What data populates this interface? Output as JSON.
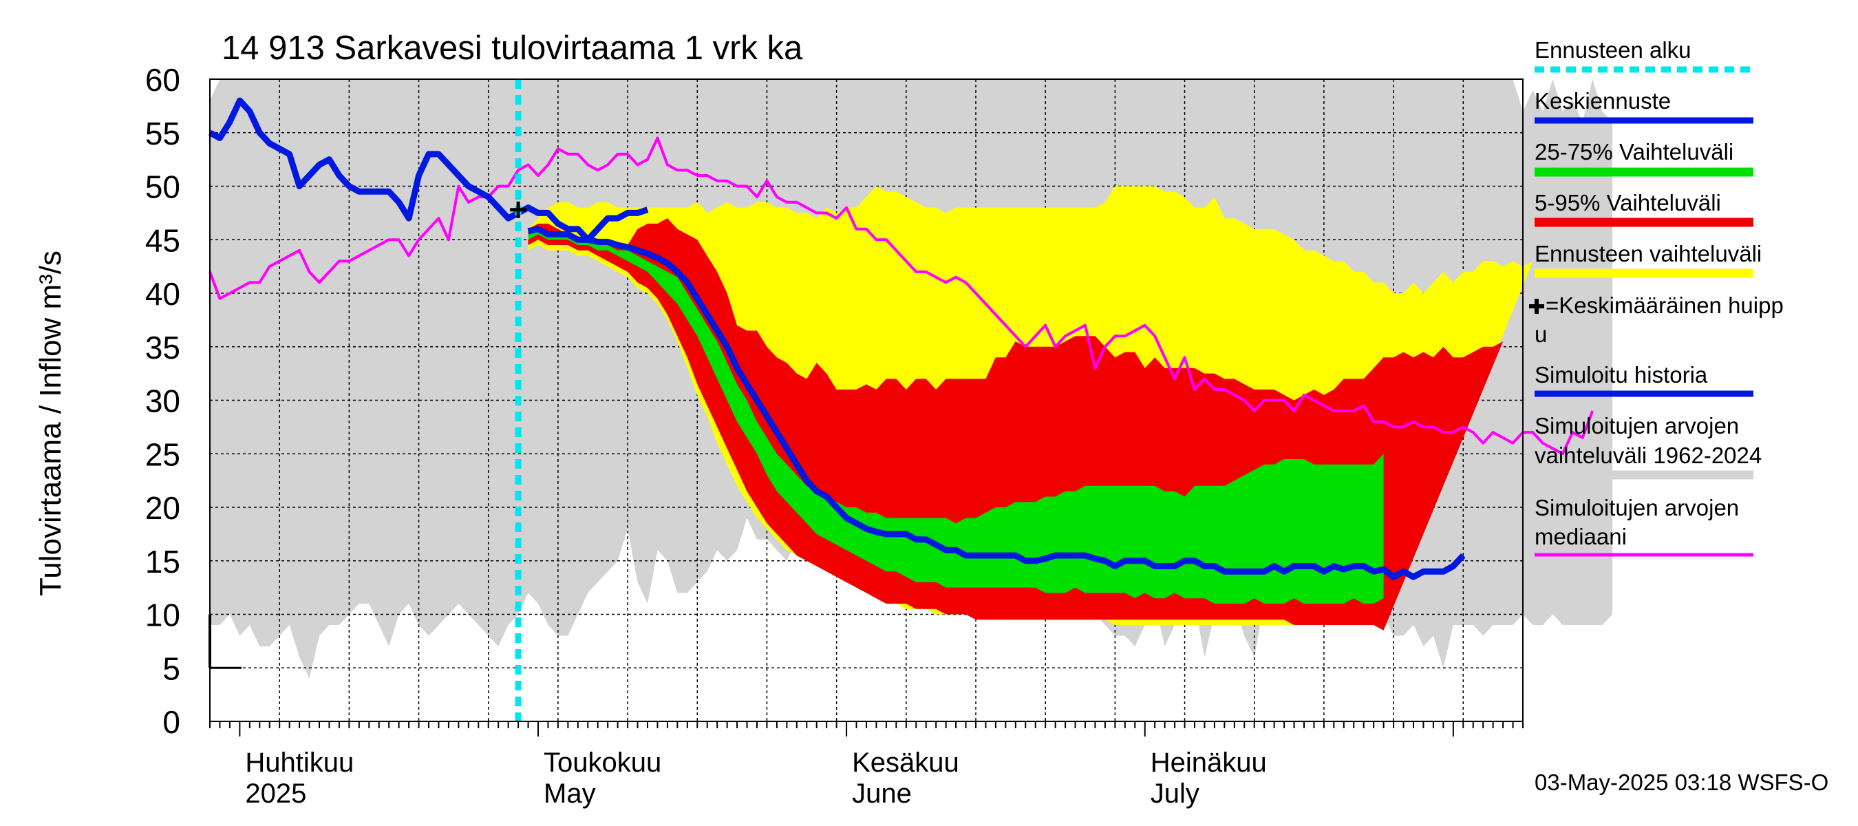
{
  "chart_data": {
    "type": "area",
    "title": "14 913 Sarkavesi tulovirtaama 1 vrk ka",
    "ylabel": "Tulovirtaama / Inflow    m³/s",
    "ylim": [
      0,
      60
    ],
    "yticks": [
      0,
      5,
      10,
      15,
      20,
      25,
      30,
      35,
      40,
      45,
      50,
      55,
      60
    ],
    "xlim": [
      "2025-03-29",
      "2025-08-08"
    ],
    "month_labels": [
      {
        "fi": "Huhtikuu",
        "en": "2025",
        "date": "2025-04-01"
      },
      {
        "fi": "Toukokuu",
        "en": "May",
        "date": "2025-05-01"
      },
      {
        "fi": "Kesäkuu",
        "en": "June",
        "date": "2025-06-01"
      },
      {
        "fi": "Heinäkuu",
        "en": "July",
        "date": "2025-07-01"
      }
    ],
    "forecast_start": "2025-04-29",
    "mean_peak": {
      "date": "2025-04-29",
      "value": 47.8
    },
    "sim_start_date": "2025-03-29",
    "fc_start_date": "2025-04-30",
    "hist_range_upper": [
      58,
      60,
      60,
      60,
      60,
      60,
      60,
      60,
      60,
      60,
      60,
      60,
      60,
      60,
      60,
      60,
      60,
      60,
      60,
      60,
      60,
      60,
      60,
      60,
      60,
      60,
      60,
      60,
      60,
      60,
      60,
      60,
      60,
      60,
      60,
      60,
      60,
      60,
      60,
      60,
      60,
      60,
      60,
      60,
      60,
      60,
      60,
      60,
      60,
      60,
      60,
      60,
      60,
      60,
      60,
      60,
      60,
      60,
      60,
      60,
      60,
      60,
      60,
      60,
      60,
      60,
      60,
      60,
      60,
      60,
      60,
      60,
      60,
      60,
      60,
      60,
      60,
      60,
      60,
      60,
      60,
      60,
      60,
      60,
      60,
      60,
      60,
      60,
      60,
      60,
      60,
      60,
      60,
      60,
      60,
      60,
      60,
      60,
      60,
      60,
      60,
      60,
      60,
      60,
      60,
      60,
      60,
      60,
      60,
      60,
      60,
      60,
      60,
      60,
      60,
      60,
      60,
      60,
      60,
      60,
      60,
      60,
      60,
      60,
      60,
      60,
      60,
      60,
      60,
      60,
      60,
      60,
      57,
      59,
      57,
      60,
      57,
      58,
      56,
      60,
      57,
      56
    ],
    "hist_range_lower": [
      9,
      9,
      10,
      8,
      9,
      7,
      7,
      8,
      9,
      6,
      4,
      8,
      9,
      9,
      10,
      11,
      11,
      9,
      7,
      10,
      11,
      9,
      8,
      9,
      10,
      11,
      10,
      9,
      8,
      7,
      9,
      10,
      12,
      11,
      9,
      8,
      8,
      10,
      12,
      13,
      14,
      15,
      18,
      13,
      11,
      16,
      15,
      12,
      12,
      13,
      14,
      16,
      15,
      16,
      19,
      17,
      17,
      16,
      15,
      17,
      16,
      16,
      16,
      17,
      17,
      17,
      15,
      18,
      17,
      16,
      15,
      15,
      16,
      14,
      14,
      15,
      12,
      13,
      12,
      11,
      12,
      11,
      11,
      11,
      11,
      12,
      10,
      10,
      10,
      10,
      9,
      8,
      8,
      7,
      9,
      11,
      7,
      9,
      10,
      11,
      6,
      10,
      10,
      11,
      8,
      6,
      11,
      11,
      10,
      10,
      10,
      11,
      10,
      9,
      11,
      10,
      9,
      9,
      10,
      8,
      8,
      9,
      7,
      8,
      5,
      9,
      9,
      9,
      8,
      9,
      9,
      9,
      10,
      9,
      9,
      10,
      9,
      9,
      9,
      9,
      9,
      10
    ],
    "sim_median": [
      42,
      39.5,
      40,
      40.5,
      41,
      41,
      42.5,
      43,
      43.5,
      44,
      42,
      41,
      42,
      43,
      43,
      43.5,
      44,
      44.5,
      45,
      45,
      43.5,
      45,
      46,
      47,
      45,
      50,
      48.5,
      49,
      49,
      50,
      50,
      51.5,
      52,
      51,
      52,
      53.5,
      53,
      53,
      52,
      51.5,
      52,
      53,
      53,
      52,
      52.5,
      54.5,
      52,
      51.5,
      51.5,
      51,
      51,
      50.5,
      50.5,
      50,
      50,
      49,
      50.5,
      49,
      48.5,
      48.5,
      48,
      47.5,
      47.5,
      47,
      48,
      46,
      46,
      45,
      45,
      44,
      43,
      42,
      42,
      41.5,
      41,
      41.5,
      41,
      40,
      39,
      38,
      37,
      36,
      35,
      36,
      37,
      35,
      36,
      36.5,
      37,
      33,
      35,
      36,
      36,
      36.5,
      37,
      36,
      34,
      32,
      34,
      31,
      32,
      31,
      31,
      30.5,
      30,
      29,
      30,
      30,
      30,
      29,
      30.5,
      30,
      29.5,
      29,
      29,
      29,
      29.5,
      28,
      28,
      27.5,
      27.5,
      28,
      27.5,
      27.5,
      27,
      27,
      27.5,
      27,
      26,
      27,
      26.5,
      26,
      27,
      27,
      26,
      25.5,
      25,
      27,
      26.5,
      29
    ],
    "sim_history": [
      55,
      54.5,
      56,
      58,
      57,
      55,
      54,
      53.5,
      53,
      50,
      51,
      52,
      52.5,
      51,
      50,
      49.5,
      49.5,
      49.5,
      49.5,
      48.5,
      47,
      51,
      53,
      53,
      52,
      51,
      50,
      49.5,
      49,
      48,
      47,
      47.5,
      48,
      47.5,
      47.5,
      46.5,
      46,
      46,
      45,
      46,
      47,
      47,
      47.5,
      47.5,
      47.8
    ],
    "fc_max": [
      46,
      47,
      48,
      48.5,
      48.5,
      48,
      48,
      48.5,
      48.5,
      48,
      48,
      48,
      48,
      48,
      48,
      48,
      48,
      48.5,
      47.5,
      48,
      48.5,
      48,
      48,
      48.5,
      48.5,
      48,
      48,
      47.5,
      47.5,
      47,
      48,
      47.5,
      48,
      48,
      49,
      50,
      49.5,
      49.5,
      49,
      48.5,
      48,
      48,
      47.5,
      48,
      48,
      48,
      48,
      48,
      48,
      48,
      48,
      48,
      48,
      48,
      48,
      48,
      48,
      48,
      48.5,
      50,
      50,
      50,
      50,
      50,
      49.5,
      49.5,
      49,
      48,
      48,
      49,
      47,
      47,
      46.5,
      46,
      46,
      46,
      45.5,
      45,
      44,
      44,
      43.5,
      43,
      43,
      42,
      42,
      41,
      41,
      40,
      40,
      41,
      40,
      41,
      42,
      41,
      42,
      42,
      43,
      43,
      42.5,
      43,
      42.5,
      43
    ],
    "fc_p95": [
      46,
      46.5,
      46.5,
      46,
      45.5,
      45,
      45,
      45,
      44.5,
      44.5,
      44.5,
      46,
      46.5,
      46.5,
      47,
      46,
      45.5,
      45,
      43.5,
      42,
      40,
      37,
      36.5,
      36.5,
      35,
      34,
      33.5,
      32.5,
      32,
      33.5,
      32.5,
      31,
      31,
      31,
      31.5,
      31,
      32,
      32,
      31,
      32,
      32,
      31,
      32,
      32,
      32,
      32,
      32,
      34,
      34,
      35.5,
      35,
      35,
      35,
      35,
      35.5,
      36,
      36,
      36,
      35,
      34,
      34.5,
      34.5,
      33,
      34,
      33,
      33,
      33,
      33,
      32.5,
      32.5,
      32,
      32,
      31.5,
      31,
      31,
      31,
      30.5,
      30,
      30.5,
      31,
      30.5,
      31,
      32,
      32,
      32,
      33,
      34,
      34,
      34.5,
      34,
      34.5,
      34,
      35,
      34,
      34,
      34.5,
      35,
      35,
      35.5
    ],
    "fc_p75": [
      45.5,
      46,
      45.5,
      45.5,
      45.5,
      45,
      45,
      44.5,
      44.5,
      44,
      44,
      43.5,
      43,
      42.5,
      42,
      41.5,
      40,
      38.5,
      37,
      35.5,
      33.5,
      31.5,
      30,
      28,
      26.5,
      25,
      24,
      23,
      22,
      21.5,
      21,
      20.5,
      20,
      20,
      19.5,
      19.5,
      19,
      19,
      19,
      19,
      19,
      19,
      19,
      18.5,
      19,
      19,
      19.5,
      20,
      20,
      20.5,
      20.5,
      20.5,
      21,
      21,
      21.5,
      21.5,
      22,
      22,
      22,
      22,
      22,
      22,
      22,
      22,
      21.5,
      21.5,
      21,
      22,
      22,
      22,
      22,
      22.5,
      23,
      23.5,
      24,
      24,
      24.5,
      24.5,
      24.5,
      24,
      24,
      24,
      24,
      24,
      24,
      24,
      25
    ],
    "fc_p25": [
      45,
      45.5,
      45,
      45,
      45,
      44.5,
      44.5,
      44,
      44,
      43.5,
      43,
      42.5,
      42,
      41,
      40,
      39,
      37.5,
      36,
      34,
      32,
      30,
      28,
      26.5,
      25,
      23,
      21.5,
      20.5,
      19.5,
      18.5,
      17.5,
      17,
      16.5,
      16,
      15.5,
      15,
      14.5,
      14,
      14,
      13.5,
      13,
      13,
      13,
      12.5,
      12.5,
      12.5,
      12.5,
      12.5,
      12.5,
      12.5,
      12.5,
      12.5,
      12.5,
      12,
      12,
      12,
      12.5,
      12,
      12,
      12,
      12,
      12,
      11.5,
      12,
      11.5,
      11.5,
      12,
      11.5,
      11.5,
      11.5,
      11,
      11,
      11,
      11,
      11.5,
      11,
      11,
      11,
      11.5,
      11,
      11,
      11,
      11,
      11,
      11.5,
      11,
      11,
      11.5
    ],
    "fc_p5": [
      44.5,
      45,
      44.5,
      44.5,
      44.5,
      44,
      44,
      43.5,
      43,
      42.5,
      42,
      41,
      40.5,
      39.5,
      38,
      36,
      34,
      31.5,
      29.5,
      27.5,
      25.5,
      23.5,
      21.5,
      20,
      18.5,
      17.5,
      16.5,
      15.5,
      15,
      14.5,
      14,
      13.5,
      13,
      12.5,
      12,
      11.5,
      11,
      11,
      11,
      10.5,
      10.5,
      10.5,
      10,
      10,
      10,
      9.5,
      9.5,
      9.5,
      9.5,
      9.5,
      9.5,
      9.5,
      9.5,
      9.5,
      9.5,
      9.5,
      9.5,
      9.5,
      9.5,
      9.5,
      9.5,
      9.5,
      9.5,
      9.5,
      9.5,
      9.5,
      9.5,
      9.5,
      9.5,
      9.5,
      9.5,
      9.5,
      9.5,
      9.5,
      9.5,
      9.5,
      9.5,
      9,
      9,
      9,
      9,
      9,
      9,
      9,
      9,
      9,
      8.5
    ],
    "fc_min": [
      44,
      44.5,
      44,
      44,
      44,
      43.5,
      43.5,
      43,
      42.5,
      42,
      41.5,
      40.5,
      40,
      39,
      37.5,
      35.5,
      33,
      30.5,
      28.5,
      26,
      24,
      22,
      20.5,
      19,
      18,
      17,
      16,
      15.5,
      15,
      14.5,
      14,
      13.5,
      13,
      12.5,
      12,
      11.5,
      11,
      11,
      10.5,
      10.5,
      10.5,
      10,
      10,
      10,
      10,
      10,
      10,
      10,
      9.5,
      9.5,
      9.5,
      9.5,
      9.5,
      9.5,
      9.5,
      9.5,
      9.5,
      9.5,
      9.5,
      9,
      9,
      9,
      9,
      9,
      9,
      9,
      9,
      9,
      9,
      9,
      9,
      9,
      9,
      9,
      9,
      9,
      9,
      9,
      9,
      9,
      9,
      9,
      9,
      9,
      9,
      9,
      8.5
    ],
    "fc_mean": [
      45.8,
      46,
      45.5,
      45.5,
      45.5,
      45,
      45,
      44.8,
      44.8,
      44.5,
      44.3,
      44,
      43.7,
      43.3,
      42.8,
      42,
      41,
      39.5,
      38,
      36.5,
      35,
      33,
      31.5,
      30,
      28.5,
      27,
      25.5,
      24,
      22.5,
      21.5,
      21,
      20,
      19,
      18.5,
      18,
      17.7,
      17.5,
      17.5,
      17.5,
      17,
      17,
      16.5,
      16,
      16,
      15.5,
      15.5,
      15.5,
      15.5,
      15.5,
      15.5,
      15,
      15,
      15.2,
      15.5,
      15.5,
      15.5,
      15.5,
      15.2,
      15,
      14.5,
      15,
      15,
      15,
      14.5,
      14.5,
      14.5,
      15,
      15,
      14.5,
      14.5,
      14,
      14,
      14,
      14,
      14,
      14.5,
      14,
      14.5,
      14.5,
      14.5,
      14,
      14.5,
      14.2,
      14.5,
      14.5,
      14,
      14.2,
      13.5,
      14,
      13.5,
      14,
      14,
      14,
      14.5,
      15.5
    ]
  },
  "legend": {
    "forecast_start": "Ennusteen alku",
    "mean_forecast": "Keskiennuste",
    "p25_75": "25-75% Vaihteluväli",
    "p5_95": "5-95% Vaihteluväli",
    "fc_range": "Ennusteen vaihteluväli",
    "mean_peak_line1": "=Keskimääräinen huipp",
    "mean_peak_line2": "u",
    "sim_history": "Simuloitu historia",
    "sim_range_line1": "Simuloitujen arvojen",
    "sim_range_line2": "vaihteluväli 1962-2024",
    "sim_median_line1": "Simuloitujen arvojen",
    "sim_median_line2": "mediaani"
  },
  "colors": {
    "forecast_start": "#00e5ee",
    "mean_forecast": "#0018e0",
    "p25_75": "#00e000",
    "p5_95": "#f00000",
    "fc_range": "#ffff00",
    "sim_history": "#0018e0",
    "sim_range": "#d3d3d3",
    "sim_median": "#ff00ff"
  },
  "footer": "03-May-2025 03:18 WSFS-O"
}
